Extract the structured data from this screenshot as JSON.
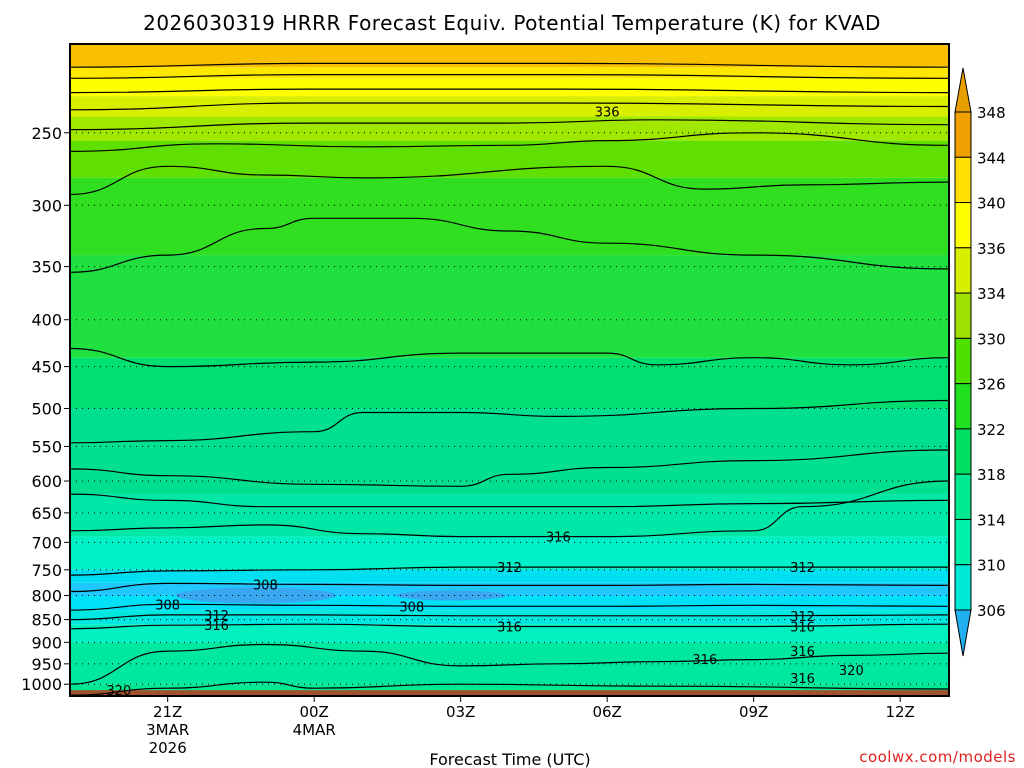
{
  "chart_data": {
    "type": "contour",
    "title": "2026030319 HRRR Forecast Equiv. Potential Temperature (K) for KVAD",
    "xlabel": "Forecast Time (UTC)",
    "ylabel": "",
    "x_ticks": [
      {
        "label": "21Z",
        "sub1": "3MAR",
        "sub2": "2026",
        "hours": 2
      },
      {
        "label": "00Z",
        "sub1": "4MAR",
        "sub2": "",
        "hours": 5
      },
      {
        "label": "03Z",
        "sub1": "",
        "sub2": "",
        "hours": 8
      },
      {
        "label": "06Z",
        "sub1": "",
        "sub2": "",
        "hours": 11
      },
      {
        "label": "09Z",
        "sub1": "",
        "sub2": "",
        "hours": 14
      },
      {
        "label": "12Z",
        "sub1": "",
        "sub2": "",
        "hours": 17
      }
    ],
    "xlim_hours": [
      0,
      18
    ],
    "y_ticks": [
      250,
      300,
      350,
      400,
      450,
      500,
      550,
      600,
      650,
      700,
      750,
      800,
      850,
      900,
      950,
      1000
    ],
    "ylim_hPa": [
      1030,
      200
    ],
    "y_scale": "log",
    "grid": "dotted horizontal",
    "surface_hPa": 1015,
    "colorbar_levels": [
      306,
      310,
      314,
      318,
      322,
      326,
      330,
      334,
      336,
      340,
      344,
      348
    ],
    "colorbar_colors": [
      "#00c8ff",
      "#00e8d8",
      "#00f0a8",
      "#00e890",
      "#00e060",
      "#20e020",
      "#50e000",
      "#a0e000",
      "#d8f000",
      "#ffff00",
      "#ffe000",
      "#f0a000",
      "#e8a000"
    ],
    "contours": [
      {
        "value": 320,
        "points": [
          [
            0,
            1028
          ],
          [
            2,
            1010
          ],
          [
            4,
            995
          ],
          [
            5,
            1010
          ],
          [
            8,
            1000
          ],
          [
            12,
            1005
          ],
          [
            18,
            1012
          ]
        ]
      },
      {
        "value": 316,
        "points": [
          [
            0,
            1000
          ],
          [
            2,
            920
          ],
          [
            4,
            905
          ],
          [
            6,
            920
          ],
          [
            8,
            955
          ],
          [
            10,
            950
          ],
          [
            12,
            945
          ],
          [
            14,
            940
          ],
          [
            16,
            930
          ],
          [
            18,
            925
          ]
        ]
      },
      {
        "value": 316,
        "points": [
          [
            0,
            870
          ],
          [
            2,
            862
          ],
          [
            5,
            860
          ],
          [
            8,
            865
          ],
          [
            11,
            865
          ],
          [
            14,
            865
          ],
          [
            18,
            860
          ]
        ]
      },
      {
        "value": 312,
        "points": [
          [
            0,
            850
          ],
          [
            2,
            840
          ],
          [
            5,
            840
          ],
          [
            8,
            842
          ],
          [
            11,
            842
          ],
          [
            14,
            842
          ],
          [
            18,
            840
          ]
        ]
      },
      {
        "value": 308,
        "points": [
          [
            0,
            830
          ],
          [
            2,
            818
          ],
          [
            5,
            820
          ],
          [
            8,
            822
          ],
          [
            11,
            822
          ],
          [
            14,
            820
          ],
          [
            18,
            822
          ]
        ]
      },
      {
        "value": 308,
        "points": [
          [
            0,
            792
          ],
          [
            2,
            776
          ],
          [
            5,
            778
          ],
          [
            8,
            780
          ],
          [
            11,
            780
          ],
          [
            14,
            778
          ],
          [
            18,
            780
          ]
        ]
      },
      {
        "value": 312,
        "points": [
          [
            0,
            760
          ],
          [
            2,
            752
          ],
          [
            5,
            750
          ],
          [
            8,
            745
          ],
          [
            11,
            745
          ],
          [
            14,
            745
          ],
          [
            18,
            745
          ]
        ]
      },
      {
        "value": 316,
        "points": [
          [
            0,
            680
          ],
          [
            2,
            675
          ],
          [
            4,
            670
          ],
          [
            6,
            685
          ],
          [
            8,
            690
          ],
          [
            11,
            690
          ],
          [
            14,
            680
          ],
          [
            15,
            640
          ],
          [
            18,
            600
          ]
        ]
      },
      {
        "value": 318,
        "points": [
          [
            0,
            620
          ],
          [
            2,
            630
          ],
          [
            4,
            640
          ],
          [
            8,
            640
          ],
          [
            11,
            640
          ],
          [
            14,
            635
          ],
          [
            18,
            630
          ]
        ]
      },
      {
        "value": 320,
        "points": [
          [
            0,
            582
          ],
          [
            2,
            592
          ],
          [
            5,
            605
          ],
          [
            8,
            608
          ],
          [
            9,
            590
          ],
          [
            11,
            580
          ],
          [
            14,
            570
          ],
          [
            18,
            555
          ]
        ]
      },
      {
        "value": 322,
        "points": [
          [
            0,
            545
          ],
          [
            2,
            542
          ],
          [
            5,
            530
          ],
          [
            6,
            505
          ],
          [
            8,
            505
          ],
          [
            10,
            510
          ],
          [
            14,
            500
          ],
          [
            18,
            490
          ]
        ]
      },
      {
        "value": 326,
        "points": [
          [
            0,
            430
          ],
          [
            2,
            450
          ],
          [
            5,
            445
          ],
          [
            8,
            435
          ],
          [
            11,
            435
          ],
          [
            12,
            448
          ],
          [
            14,
            440
          ],
          [
            16,
            448
          ],
          [
            18,
            440
          ]
        ]
      },
      {
        "value": 330,
        "points": [
          [
            0,
            355
          ],
          [
            2,
            340
          ],
          [
            4,
            318
          ],
          [
            5,
            310
          ],
          [
            7,
            310
          ],
          [
            9,
            320
          ],
          [
            11,
            330
          ],
          [
            14,
            340
          ],
          [
            18,
            352
          ]
        ]
      },
      {
        "value": 334,
        "points": [
          [
            0,
            292
          ],
          [
            2,
            272
          ],
          [
            4,
            278
          ],
          [
            6,
            280
          ],
          [
            11,
            272
          ],
          [
            13,
            288
          ],
          [
            15,
            285
          ],
          [
            18,
            283
          ]
        ]
      },
      {
        "value": 336,
        "points": [
          [
            0,
            262
          ],
          [
            3,
            257
          ],
          [
            6,
            259
          ],
          [
            9,
            258
          ],
          [
            11,
            255
          ],
          [
            14,
            250
          ],
          [
            18,
            258
          ]
        ]
      },
      {
        "value": 336,
        "points": [
          [
            0,
            248
          ],
          [
            5,
            244
          ],
          [
            9,
            244
          ],
          [
            12,
            242
          ],
          [
            18,
            245
          ]
        ]
      },
      {
        "value": 336,
        "points": [
          [
            0,
            236
          ],
          [
            5,
            232
          ],
          [
            10,
            232
          ],
          [
            18,
            234
          ]
        ]
      },
      {
        "value": 336,
        "points": [
          [
            0,
            226
          ],
          [
            5,
            224
          ],
          [
            10,
            224
          ],
          [
            18,
            226
          ]
        ]
      },
      {
        "value": 340,
        "points": [
          [
            0,
            218
          ],
          [
            5,
            216
          ],
          [
            10,
            216
          ],
          [
            18,
            218
          ]
        ]
      },
      {
        "value": 344,
        "points": [
          [
            0,
            212
          ],
          [
            5,
            210
          ],
          [
            10,
            210
          ],
          [
            18,
            212
          ]
        ]
      }
    ],
    "contour_labels": [
      {
        "text": "336",
        "hours": 11,
        "hPa": 237
      },
      {
        "text": "316",
        "hours": 10,
        "hPa": 690
      },
      {
        "text": "312",
        "hours": 9,
        "hPa": 745
      },
      {
        "text": "308",
        "hours": 4,
        "hPa": 778
      },
      {
        "text": "308",
        "hours": 2,
        "hPa": 818
      },
      {
        "text": "312",
        "hours": 3,
        "hPa": 840
      },
      {
        "text": "316",
        "hours": 3,
        "hPa": 862
      },
      {
        "text": "308",
        "hours": 7,
        "hPa": 822
      },
      {
        "text": "316",
        "hours": 9,
        "hPa": 865
      },
      {
        "text": "312",
        "hours": 15,
        "hPa": 745
      },
      {
        "text": "312",
        "hours": 15,
        "hPa": 842
      },
      {
        "text": "316",
        "hours": 15,
        "hPa": 865
      },
      {
        "text": "316",
        "hours": 15,
        "hPa": 920
      },
      {
        "text": "316",
        "hours": 13,
        "hPa": 938
      },
      {
        "text": "320",
        "hours": 16,
        "hPa": 965
      },
      {
        "text": "316",
        "hours": 15,
        "hPa": 985
      },
      {
        "text": "320",
        "hours": 1,
        "hPa": 1015
      }
    ]
  },
  "watermark": "coolwx.com/models",
  "ground_color": "#a0522d"
}
